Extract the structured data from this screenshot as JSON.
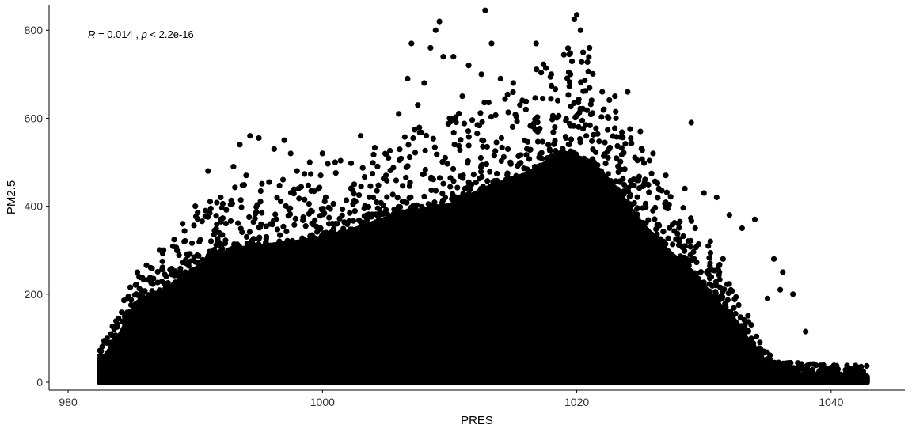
{
  "chart_data": {
    "type": "scatter",
    "xlabel": "PRES",
    "ylabel": "PM2.5",
    "xlim": [
      978.5,
      1045.8
    ],
    "ylim": [
      -18,
      858
    ],
    "x_ticks": [
      980,
      1000,
      1020,
      1040
    ],
    "y_ticks": [
      0,
      200,
      400,
      600,
      800
    ],
    "grid": false,
    "legend": "none",
    "point_color": "#000000",
    "annotation": {
      "r_symbol": "R",
      "r_text": " = 0.014 , ",
      "p_symbol": "p",
      "p_text": " < 2.2e-16"
    },
    "envelope": [
      {
        "x": 982.5,
        "y": 40
      },
      {
        "x": 984,
        "y": 100
      },
      {
        "x": 985.5,
        "y": 180
      },
      {
        "x": 987,
        "y": 190
      },
      {
        "x": 989,
        "y": 235
      },
      {
        "x": 991,
        "y": 275
      },
      {
        "x": 993,
        "y": 300
      },
      {
        "x": 996,
        "y": 310
      },
      {
        "x": 999,
        "y": 320
      },
      {
        "x": 1002,
        "y": 340
      },
      {
        "x": 1006,
        "y": 380
      },
      {
        "x": 1010,
        "y": 400
      },
      {
        "x": 1013,
        "y": 440
      },
      {
        "x": 1016,
        "y": 470
      },
      {
        "x": 1019,
        "y": 520
      },
      {
        "x": 1021,
        "y": 500
      },
      {
        "x": 1023,
        "y": 440
      },
      {
        "x": 1025,
        "y": 360
      },
      {
        "x": 1027,
        "y": 300
      },
      {
        "x": 1029,
        "y": 250
      },
      {
        "x": 1031,
        "y": 180
      },
      {
        "x": 1033,
        "y": 110
      },
      {
        "x": 1034.5,
        "y": 50
      },
      {
        "x": 1035.5,
        "y": 22
      },
      {
        "x": 1038,
        "y": 15
      },
      {
        "x": 1042.8,
        "y": 12
      }
    ],
    "outliers": [
      {
        "x": 993,
        "y": 490
      },
      {
        "x": 993.5,
        "y": 540
      },
      {
        "x": 994.3,
        "y": 560
      },
      {
        "x": 995,
        "y": 555
      },
      {
        "x": 996.2,
        "y": 530
      },
      {
        "x": 997,
        "y": 550
      },
      {
        "x": 997.5,
        "y": 520
      },
      {
        "x": 999,
        "y": 500
      },
      {
        "x": 1000,
        "y": 520
      },
      {
        "x": 1001,
        "y": 500
      },
      {
        "x": 1003,
        "y": 560
      },
      {
        "x": 1005,
        "y": 470
      },
      {
        "x": 1006,
        "y": 610
      },
      {
        "x": 1006.7,
        "y": 690
      },
      {
        "x": 1007,
        "y": 770
      },
      {
        "x": 1008,
        "y": 680
      },
      {
        "x": 1008.5,
        "y": 760
      },
      {
        "x": 1008.9,
        "y": 800
      },
      {
        "x": 1009.2,
        "y": 820
      },
      {
        "x": 1009.5,
        "y": 740
      },
      {
        "x": 1010.3,
        "y": 740
      },
      {
        "x": 1011.5,
        "y": 720
      },
      {
        "x": 1012.5,
        "y": 700
      },
      {
        "x": 1012.8,
        "y": 845
      },
      {
        "x": 1013.3,
        "y": 770
      },
      {
        "x": 1014,
        "y": 690
      },
      {
        "x": 1015,
        "y": 680
      },
      {
        "x": 1016.8,
        "y": 770
      },
      {
        "x": 1018,
        "y": 700
      },
      {
        "x": 1019.5,
        "y": 700
      },
      {
        "x": 1019.8,
        "y": 825
      },
      {
        "x": 1020,
        "y": 835
      },
      {
        "x": 1020.3,
        "y": 800
      },
      {
        "x": 1020.5,
        "y": 750
      },
      {
        "x": 1021,
        "y": 760
      },
      {
        "x": 1022,
        "y": 660
      },
      {
        "x": 1023,
        "y": 650
      },
      {
        "x": 1024,
        "y": 660
      },
      {
        "x": 1025,
        "y": 570
      },
      {
        "x": 1026,
        "y": 520
      },
      {
        "x": 1029,
        "y": 590
      },
      {
        "x": 1030,
        "y": 430
      },
      {
        "x": 1031,
        "y": 420
      },
      {
        "x": 1032,
        "y": 380
      },
      {
        "x": 1033,
        "y": 350
      },
      {
        "x": 1034,
        "y": 370
      },
      {
        "x": 1035.5,
        "y": 280
      },
      {
        "x": 1036.2,
        "y": 250
      },
      {
        "x": 1037,
        "y": 200
      },
      {
        "x": 1038,
        "y": 115
      },
      {
        "x": 1036,
        "y": 210
      },
      {
        "x": 1035,
        "y": 190
      },
      {
        "x": 1031.5,
        "y": 280
      },
      {
        "x": 1030.5,
        "y": 320
      },
      {
        "x": 1004,
        "y": 420
      },
      {
        "x": 1002.5,
        "y": 450
      },
      {
        "x": 998,
        "y": 480
      },
      {
        "x": 991,
        "y": 480
      },
      {
        "x": 992,
        "y": 420
      },
      {
        "x": 994,
        "y": 470
      },
      {
        "x": 990,
        "y": 400
      },
      {
        "x": 989,
        "y": 360
      },
      {
        "x": 987.5,
        "y": 300
      },
      {
        "x": 986.5,
        "y": 260
      },
      {
        "x": 1011,
        "y": 650
      },
      {
        "x": 1010,
        "y": 600
      },
      {
        "x": 1007.5,
        "y": 630
      },
      {
        "x": 1016,
        "y": 620
      },
      {
        "x": 1018.5,
        "y": 640
      },
      {
        "x": 1022.5,
        "y": 600
      },
      {
        "x": 1027,
        "y": 470
      },
      {
        "x": 1028.5,
        "y": 440
      }
    ]
  }
}
